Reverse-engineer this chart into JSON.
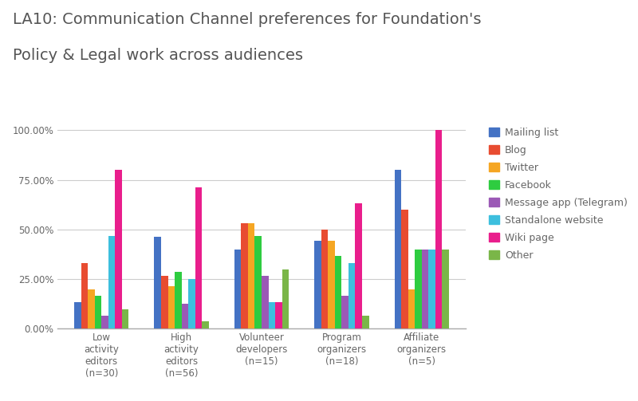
{
  "title_line1": "LA10: Communication Channel preferences for Foundation's",
  "title_line2": "Policy & Legal work across audiences",
  "categories": [
    "Low\nactivity\neditors\n(n=30)",
    "High\nactivity\neditors\n(n=56)",
    "Volunteer\ndevelopers\n(n=15)",
    "Program\norganizers\n(n=18)",
    "Affiliate\norganizers\n(n=5)"
  ],
  "series": [
    {
      "label": "Mailing list",
      "color": "#4472c4",
      "values": [
        0.133,
        0.464,
        0.4,
        0.444,
        0.8
      ]
    },
    {
      "label": "Blog",
      "color": "#e84c31",
      "values": [
        0.333,
        0.268,
        0.533,
        0.5,
        0.6
      ]
    },
    {
      "label": "Twitter",
      "color": "#f5a623",
      "values": [
        0.2,
        0.214,
        0.533,
        0.444,
        0.2
      ]
    },
    {
      "label": "Facebook",
      "color": "#2ecc40",
      "values": [
        0.167,
        0.286,
        0.467,
        0.367,
        0.4
      ]
    },
    {
      "label": "Message app (Telegram)",
      "color": "#9b59b6",
      "values": [
        0.067,
        0.125,
        0.267,
        0.167,
        0.4
      ]
    },
    {
      "label": "Standalone website",
      "color": "#3dbfde",
      "values": [
        0.467,
        0.25,
        0.133,
        0.333,
        0.4
      ]
    },
    {
      "label": "Wiki page",
      "color": "#e91e8c",
      "values": [
        0.8,
        0.714,
        0.133,
        0.633,
        1.0
      ]
    },
    {
      "label": "Other",
      "color": "#7ab648",
      "values": [
        0.1,
        0.036,
        0.3,
        0.067,
        0.4
      ]
    }
  ],
  "ylim": [
    0,
    1.05
  ],
  "yticks": [
    0.0,
    0.25,
    0.5,
    0.75,
    1.0
  ],
  "ytick_labels": [
    "0.00%",
    "25.00%",
    "50.00%",
    "75.00%",
    "100.00%"
  ],
  "background_color": "#ffffff",
  "grid_color": "#cccccc",
  "title_color": "#555555",
  "axis_label_color": "#666666"
}
